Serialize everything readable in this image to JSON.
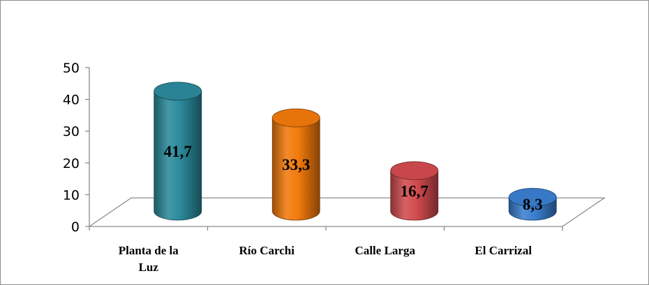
{
  "chart_data": {
    "type": "bar",
    "categories": [
      "Planta de la Luz",
      "Río Carchi",
      "Calle Larga",
      "El Carrizal"
    ],
    "category_lines": [
      [
        "Planta de la",
        "Luz"
      ],
      [
        "Río Carchi"
      ],
      [
        "Calle Larga"
      ],
      [
        "El Carrizal"
      ]
    ],
    "values": [
      41.7,
      33.3,
      16.7,
      8.3
    ],
    "data_labels": [
      "41,7",
      "33,3",
      "16,7",
      "8,3"
    ],
    "y_ticks": [
      "0",
      "10",
      "20",
      "30",
      "40",
      "50"
    ],
    "ylim": [
      0,
      50
    ],
    "colors": [
      "#2b8a9c",
      "#f27a0c",
      "#d24b4e",
      "#3a7fd0"
    ],
    "title": "",
    "xlabel": "",
    "ylabel": ""
  }
}
